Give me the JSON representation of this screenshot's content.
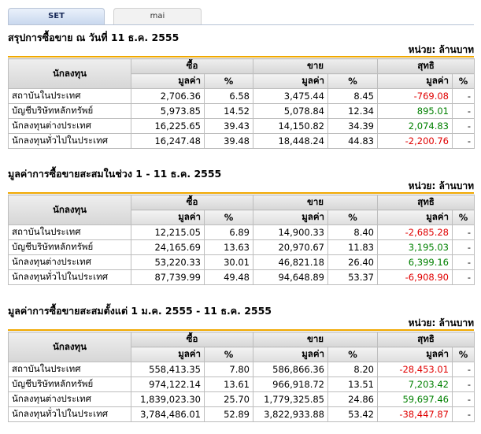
{
  "tabs": [
    {
      "label": "SET",
      "active": true
    },
    {
      "label": "mai",
      "active": false
    }
  ],
  "headers": {
    "investor": "นักลงทุน",
    "buy": "ซื้อ",
    "sell": "ขาย",
    "net": "สุทธิ",
    "value": "มูลค่า",
    "pct": "%"
  },
  "sections": [
    {
      "title": "สรุปการซื้อขาย ณ วันที่ 11 ธ.ค. 2555",
      "unit": "หน่วย: ล้านบาท",
      "rows": [
        {
          "investor": "สถาบันในประเทศ",
          "buy_value": "2,706.36",
          "buy_pct": "6.58",
          "sell_value": "3,475.44",
          "sell_pct": "8.45",
          "net_value": "-769.08",
          "net_sign": "neg",
          "net_pct": "-"
        },
        {
          "investor": "บัญชีบริษัทหลักทรัพย์",
          "buy_value": "5,973.85",
          "buy_pct": "14.52",
          "sell_value": "5,078.84",
          "sell_pct": "12.34",
          "net_value": "895.01",
          "net_sign": "pos",
          "net_pct": "-"
        },
        {
          "investor": "นักลงทุนต่างประเทศ",
          "buy_value": "16,225.65",
          "buy_pct": "39.43",
          "sell_value": "14,150.82",
          "sell_pct": "34.39",
          "net_value": "2,074.83",
          "net_sign": "pos",
          "net_pct": "-"
        },
        {
          "investor": "นักลงทุนทั่วไปในประเทศ",
          "buy_value": "16,247.48",
          "buy_pct": "39.48",
          "sell_value": "18,448.24",
          "sell_pct": "44.83",
          "net_value": "-2,200.76",
          "net_sign": "neg",
          "net_pct": "-"
        }
      ]
    },
    {
      "title": "มูลค่าการซื้อขายสะสมในช่วง 1 - 11 ธ.ค. 2555",
      "unit": "หน่วย: ล้านบาท",
      "rows": [
        {
          "investor": "สถาบันในประเทศ",
          "buy_value": "12,215.05",
          "buy_pct": "6.89",
          "sell_value": "14,900.33",
          "sell_pct": "8.40",
          "net_value": "-2,685.28",
          "net_sign": "neg",
          "net_pct": "-"
        },
        {
          "investor": "บัญชีบริษัทหลักทรัพย์",
          "buy_value": "24,165.69",
          "buy_pct": "13.63",
          "sell_value": "20,970.67",
          "sell_pct": "11.83",
          "net_value": "3,195.03",
          "net_sign": "pos",
          "net_pct": "-"
        },
        {
          "investor": "นักลงทุนต่างประเทศ",
          "buy_value": "53,220.33",
          "buy_pct": "30.01",
          "sell_value": "46,821.18",
          "sell_pct": "26.40",
          "net_value": "6,399.16",
          "net_sign": "pos",
          "net_pct": "-"
        },
        {
          "investor": "นักลงทุนทั่วไปในประเทศ",
          "buy_value": "87,739.99",
          "buy_pct": "49.48",
          "sell_value": "94,648.89",
          "sell_pct": "53.37",
          "net_value": "-6,908.90",
          "net_sign": "neg",
          "net_pct": "-"
        }
      ]
    },
    {
      "title": "มูลค่าการซื้อขายสะสมตั้งแต่ 1 ม.ค. 2555 - 11 ธ.ค. 2555",
      "unit": "หน่วย: ล้านบาท",
      "rows": [
        {
          "investor": "สถาบันในประเทศ",
          "buy_value": "558,413.35",
          "buy_pct": "7.80",
          "sell_value": "586,866.36",
          "sell_pct": "8.20",
          "net_value": "-28,453.01",
          "net_sign": "neg",
          "net_pct": "-"
        },
        {
          "investor": "บัญชีบริษัทหลักทรัพย์",
          "buy_value": "974,122.14",
          "buy_pct": "13.61",
          "sell_value": "966,918.72",
          "sell_pct": "13.51",
          "net_value": "7,203.42",
          "net_sign": "pos",
          "net_pct": "-"
        },
        {
          "investor": "นักลงทุนต่างประเทศ",
          "buy_value": "1,839,023.30",
          "buy_pct": "25.70",
          "sell_value": "1,779,325.85",
          "sell_pct": "24.86",
          "net_value": "59,697.46",
          "net_sign": "pos",
          "net_pct": "-"
        },
        {
          "investor": "นักลงทุนทั่วไปในประเทศ",
          "buy_value": "3,784,486.01",
          "buy_pct": "52.89",
          "sell_value": "3,822,933.88",
          "sell_pct": "53.42",
          "net_value": "-38,447.87",
          "net_sign": "neg",
          "net_pct": "-"
        }
      ]
    }
  ],
  "colors": {
    "positive": "#008000",
    "negative": "#e00000",
    "accent_line": "#f0a800"
  }
}
